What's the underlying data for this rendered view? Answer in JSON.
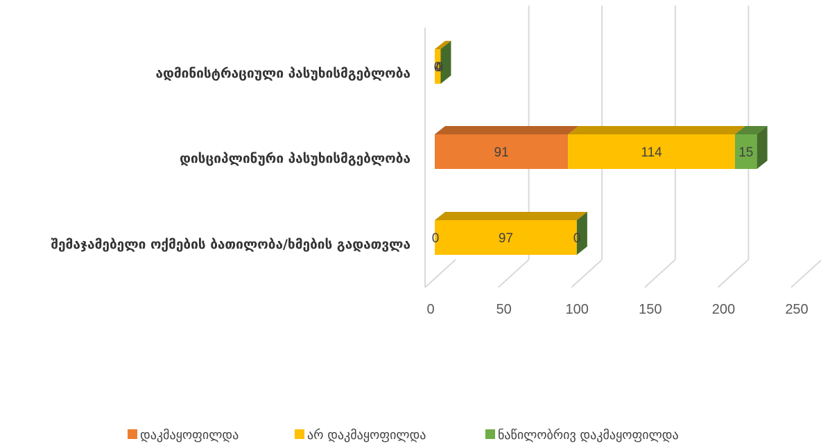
{
  "chart_data": {
    "type": "bar",
    "orientation": "horizontal",
    "stacked": true,
    "style": "3d",
    "categories": [
      "ადმინისტრაციული პასუხისმგებლობა",
      "დისციპლინური პასუხისმგებლობა",
      "შემაჯამებელი ოქმების ბათილობა/ხმების გადათვლა"
    ],
    "series": [
      {
        "name": "დაკმაყოფილდა",
        "color": "#ED7D31",
        "values": [
          0,
          91,
          0
        ]
      },
      {
        "name": "არ დაკმაყოფილდა",
        "color": "#FFC000",
        "values": [
          4,
          114,
          97
        ]
      },
      {
        "name": "ნაწილობრივ დაკმაყოფილდა",
        "color": "#70AD47",
        "values": [
          0,
          15,
          0
        ]
      }
    ],
    "data_labels": [
      [
        "0",
        "91",
        "0"
      ],
      [
        "4",
        "114",
        "97"
      ],
      [
        "0",
        "15",
        "0"
      ]
    ],
    "xticks": [
      "0",
      "50",
      "100",
      "150",
      "200",
      "250"
    ],
    "xlim": [
      0,
      250
    ],
    "grid": true,
    "legend_position": "bottom"
  }
}
